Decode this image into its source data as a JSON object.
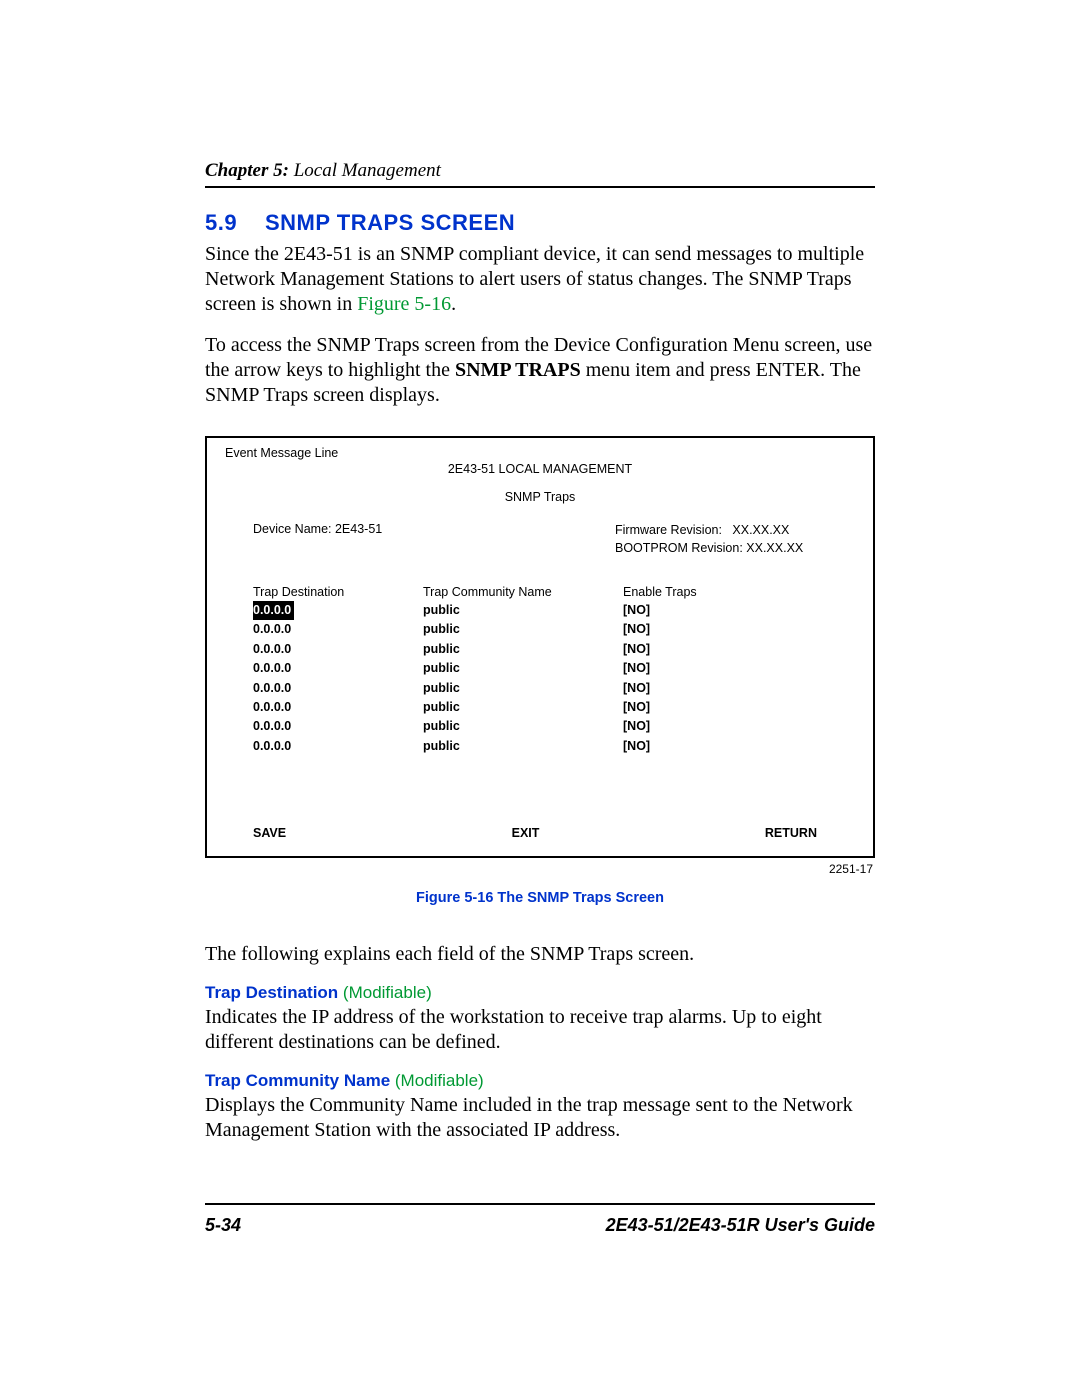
{
  "header": {
    "chapter_label": "Chapter 5:",
    "chapter_title": " Local Management"
  },
  "section": {
    "number": "5.9",
    "title": "SNMP TRAPS SCREEN"
  },
  "para1_a": "Since the 2E43-51 is an SNMP compliant device, it can send messages to multiple Network Management Stations to alert users of status changes. The SNMP Traps screen is shown in ",
  "para1_ref": "Figure 5-16",
  "para1_b": ".",
  "para2_a": "To access the SNMP Traps screen from the Device Configuration Menu screen, use the arrow keys to highlight the ",
  "para2_bold": "SNMP TRAPS",
  "para2_b": " menu item and press ENTER. The SNMP Traps screen displays.",
  "screen": {
    "event_line": "Event Message Line",
    "title": "2E43-51 LOCAL MANAGEMENT",
    "subtitle": "SNMP Traps",
    "device_name": "Device Name: 2E43-51",
    "firmware_label": "Firmware Revision:",
    "firmware_val": "XX.XX.XX",
    "bootprom": "BOOTPROM Revision: XX.XX.XX",
    "col_dest": "Trap Destination",
    "col_comm": "Trap Community Name",
    "col_enab": "Enable Traps",
    "rows": [
      {
        "dest": "0.0.0.0",
        "comm": "public",
        "enab": "[NO]",
        "hl": true
      },
      {
        "dest": "0.0.0.0",
        "comm": "public",
        "enab": "[NO]",
        "hl": false
      },
      {
        "dest": "0.0.0.0",
        "comm": "public",
        "enab": "[NO]",
        "hl": false
      },
      {
        "dest": "0.0.0.0",
        "comm": "public",
        "enab": "[NO]",
        "hl": false
      },
      {
        "dest": "0.0.0.0",
        "comm": "public",
        "enab": "[NO]",
        "hl": false
      },
      {
        "dest": "0.0.0.0",
        "comm": "public",
        "enab": "[NO]",
        "hl": false
      },
      {
        "dest": "0.0.0.0",
        "comm": "public",
        "enab": "[NO]",
        "hl": false
      },
      {
        "dest": "0.0.0.0",
        "comm": "public",
        "enab": "[NO]",
        "hl": false
      }
    ],
    "btn_save": "SAVE",
    "btn_exit": "EXIT",
    "btn_return": "RETURN",
    "id": "2251-17"
  },
  "figure_caption": "Figure 5-16    The SNMP Traps Screen",
  "para3": "The following explains each field of the SNMP Traps screen.",
  "field1": {
    "name": "Trap Destination ",
    "mod": "(Modifiable)",
    "desc": "Indicates the IP address of the workstation to receive trap alarms. Up to eight different destinations can be defined."
  },
  "field2": {
    "name": "Trap Community Name ",
    "mod": "(Modifiable)",
    "desc": "Displays the Community Name included in the trap message sent to the Network Management Station with the associated IP address."
  },
  "footer": {
    "page": "5-34",
    "guide": "2E43-51/2E43-51R User's Guide"
  }
}
